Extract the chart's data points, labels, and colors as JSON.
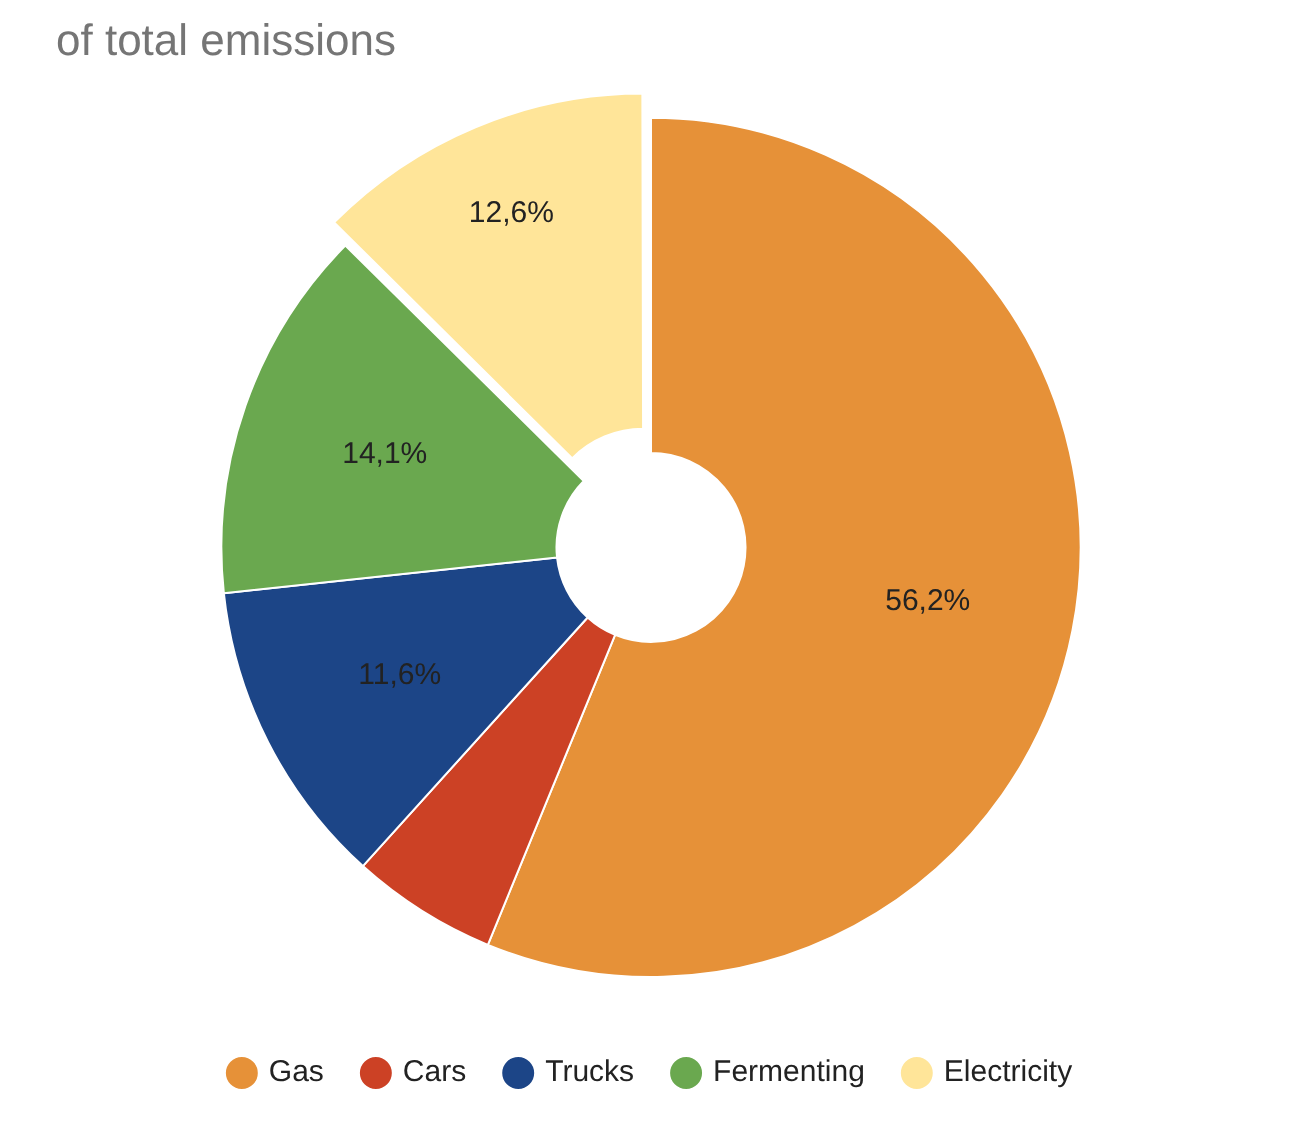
{
  "chart_data": {
    "type": "donut",
    "title": "of total emissions",
    "categories": [
      "Gas",
      "Cars",
      "Trucks",
      "Fermenting",
      "Electricity"
    ],
    "values": [
      56.2,
      5.5,
      11.6,
      14.1,
      12.6
    ],
    "value_labels": [
      "56,2%",
      null,
      "11,6%",
      "14,1%",
      "12,6%"
    ],
    "colors": [
      "#e69138",
      "#cc4125",
      "#1c4587",
      "#6aa84f",
      "#ffe599"
    ],
    "legend": "bottom"
  }
}
